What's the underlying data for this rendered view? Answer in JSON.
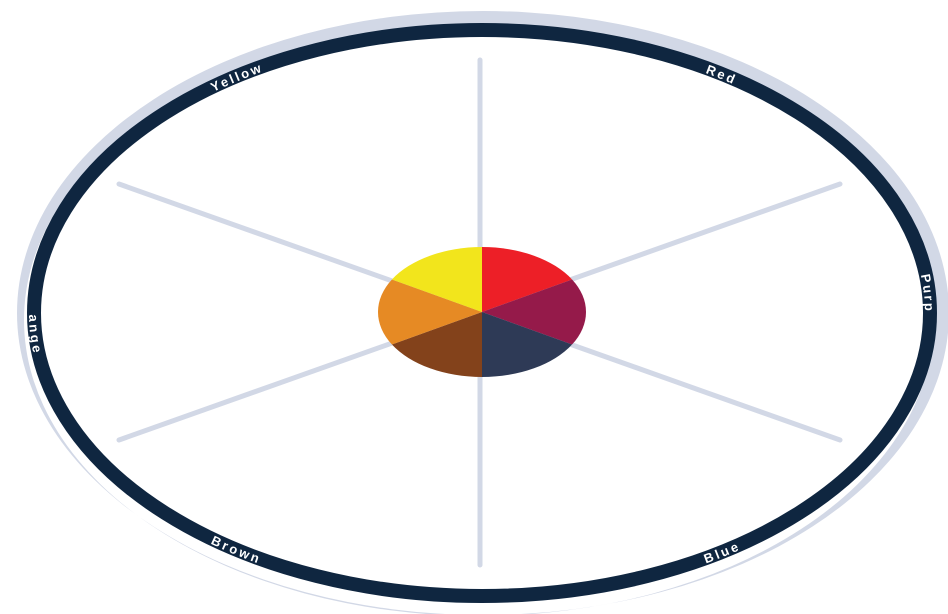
{
  "diagram": {
    "segments": [
      {
        "name": "Red",
        "color": "#ED1F27"
      },
      {
        "name": "Purple",
        "color": "#951A4A"
      },
      {
        "name": "Blue",
        "color": "#2E3A56"
      },
      {
        "name": "Brown",
        "color": "#83421B"
      },
      {
        "name": "Orange",
        "color": "#E68A24"
      },
      {
        "name": "Yellow",
        "color": "#F2E51C"
      }
    ],
    "colors": {
      "ring": "#0F2640",
      "shadow": "#D2D8E6",
      "spokes": "#D2D8E6",
      "background": "#FFFFFF"
    }
  }
}
